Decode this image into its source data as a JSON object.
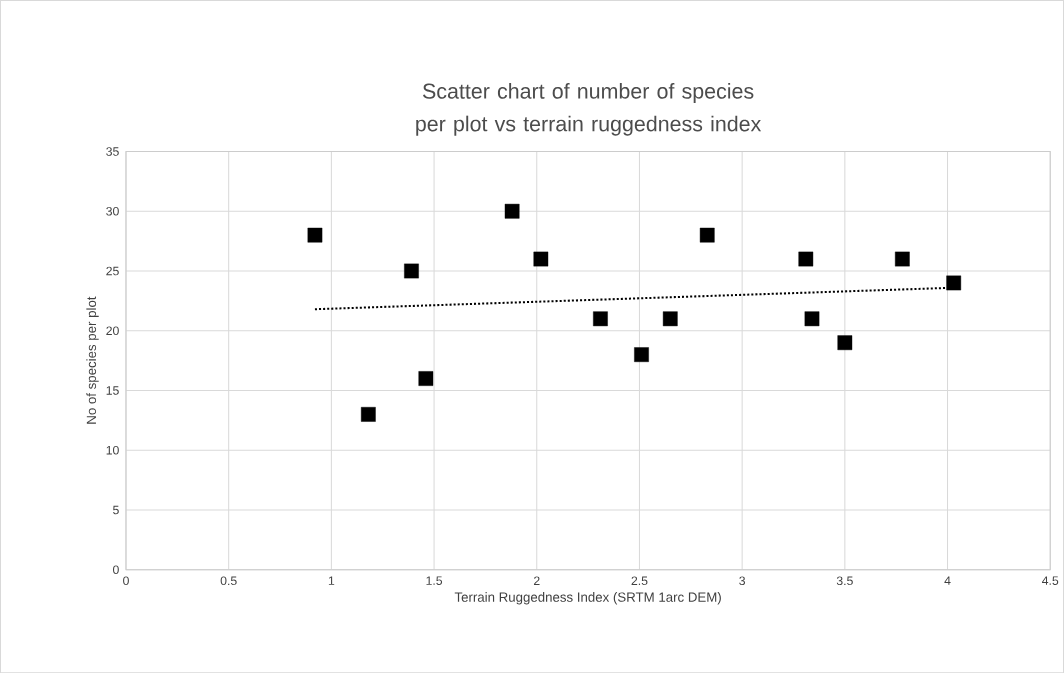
{
  "chart_data": {
    "type": "scatter",
    "title": "Scatter chart of number of species per plot vs terrain ruggedness index",
    "xlabel": "Terrain Ruggedness Index (SRTM 1arc DEM)",
    "ylabel": "No of species per plot",
    "x": [
      0.92,
      1.18,
      1.39,
      1.46,
      1.88,
      2.02,
      2.31,
      2.51,
      2.65,
      2.83,
      3.31,
      3.34,
      3.5,
      3.78,
      4.03
    ],
    "series": [
      {
        "color": "#000000",
        "values": [
          28,
          13,
          25,
          16,
          30,
          26,
          21,
          18,
          21,
          28,
          26,
          21,
          19,
          26,
          24
        ],
        "marker": "square"
      },
      {
        "type": "line",
        "color": "#000000",
        "x": [
          0.92,
          4.03
        ],
        "values": [
          21.8,
          23.6
        ],
        "line_style": "dotted",
        "marker": "none"
      }
    ],
    "xlim": [
      0,
      4.5
    ],
    "xticks": [
      0,
      0.5,
      1,
      1.5,
      2,
      2.5,
      3,
      3.5,
      4,
      4.5
    ],
    "ylim": [
      0,
      35
    ],
    "yticks": [
      0,
      5,
      10,
      15,
      20,
      25,
      30,
      35
    ],
    "grid": true
  }
}
